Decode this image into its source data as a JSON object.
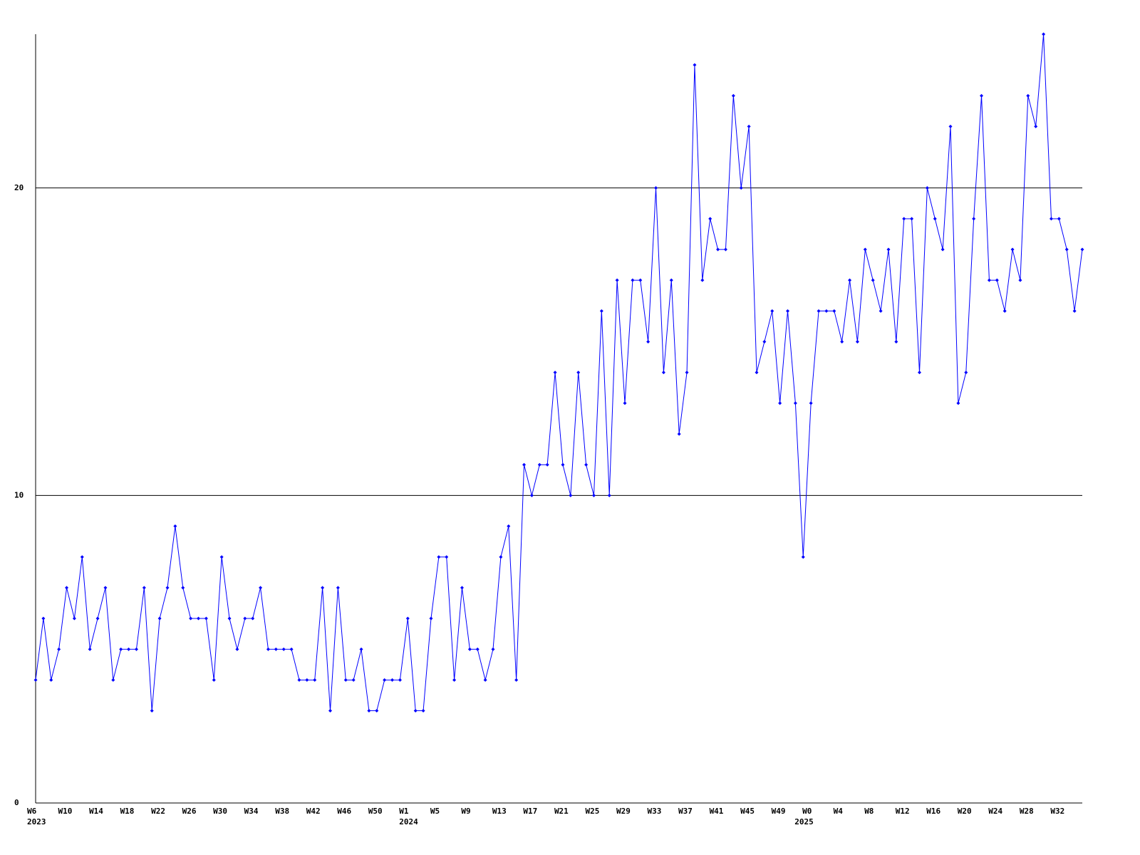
{
  "chart_data": {
    "type": "line",
    "color": "#0000ff",
    "grid": true,
    "ylim": [
      0,
      25
    ],
    "yticks": [
      0,
      10,
      20
    ],
    "categories": [
      "W6",
      null,
      null,
      null,
      "W10",
      null,
      null,
      null,
      "W14",
      null,
      null,
      null,
      "W18",
      null,
      null,
      null,
      "W22",
      null,
      null,
      null,
      "W26",
      null,
      null,
      null,
      "W30",
      null,
      null,
      null,
      "W34",
      null,
      null,
      null,
      "W38",
      null,
      null,
      null,
      "W42",
      null,
      null,
      null,
      "W46",
      null,
      null,
      null,
      "W50",
      null,
      null,
      null,
      "W1",
      null,
      null,
      null,
      "W5",
      null,
      null,
      null,
      "W9",
      null,
      null,
      null,
      "W13",
      null,
      null,
      null,
      "W17",
      null,
      null,
      null,
      "W21",
      null,
      null,
      null,
      "W25",
      null,
      null,
      null,
      "W29",
      null,
      null,
      null,
      "W33",
      null,
      null,
      null,
      "W37",
      null,
      null,
      null,
      "W41",
      null,
      null,
      null,
      "W45",
      null,
      null,
      null,
      "W49",
      null,
      null,
      null,
      "W0",
      null,
      null,
      null,
      "W4",
      null,
      null,
      null,
      "W8",
      null,
      null,
      null,
      "W12",
      null,
      null,
      null,
      "W16",
      null,
      null,
      null,
      "W20",
      null,
      null,
      null,
      "W24",
      null,
      null,
      null,
      "W28",
      null,
      null,
      null,
      "W32",
      null,
      null,
      null
    ],
    "category_years": [
      "2023",
      null,
      null,
      null,
      null,
      null,
      null,
      null,
      null,
      null,
      null,
      null,
      null,
      null,
      null,
      null,
      null,
      null,
      null,
      null,
      null,
      null,
      null,
      null,
      null,
      null,
      null,
      null,
      null,
      null,
      null,
      null,
      null,
      null,
      null,
      null,
      null,
      null,
      null,
      null,
      null,
      null,
      null,
      null,
      null,
      null,
      null,
      null,
      "2024",
      null,
      null,
      null,
      null,
      null,
      null,
      null,
      null,
      null,
      null,
      null,
      null,
      null,
      null,
      null,
      null,
      null,
      null,
      null,
      null,
      null,
      null,
      null,
      null,
      null,
      null,
      null,
      null,
      null,
      null,
      null,
      null,
      null,
      null,
      null,
      null,
      null,
      null,
      null,
      null,
      null,
      null,
      null,
      null,
      null,
      null,
      null,
      null,
      null,
      null,
      "2025",
      null,
      null,
      null,
      null,
      null,
      null,
      null,
      null,
      null,
      null,
      null,
      null,
      null,
      null,
      null,
      null,
      null,
      null,
      null,
      null,
      null,
      null,
      null,
      null,
      null,
      null,
      null,
      null,
      null,
      null,
      null,
      null,
      null,
      null,
      null
    ],
    "values": [
      4,
      6,
      4,
      5,
      7,
      6,
      8,
      5,
      6,
      7,
      4,
      5,
      5,
      5,
      7,
      3,
      6,
      7,
      9,
      7,
      6,
      6,
      6,
      4,
      8,
      6,
      5,
      6,
      6,
      7,
      5,
      5,
      5,
      5,
      4,
      4,
      4,
      7,
      3,
      7,
      4,
      4,
      5,
      3,
      3,
      4,
      4,
      4,
      6,
      3,
      3,
      6,
      8,
      8,
      4,
      7,
      5,
      5,
      4,
      5,
      8,
      9,
      4,
      11,
      10,
      11,
      11,
      14,
      11,
      10,
      14,
      11,
      10,
      16,
      10,
      17,
      13,
      17,
      17,
      15,
      20,
      14,
      17,
      12,
      14,
      24,
      17,
      19,
      18,
      18,
      23,
      20,
      22,
      14,
      15,
      16,
      13,
      16,
      13,
      8,
      13,
      16,
      16,
      16,
      15,
      17,
      15,
      18,
      17,
      16,
      18,
      15,
      19,
      19,
      14,
      20,
      19,
      18,
      22,
      13,
      14,
      19,
      23,
      17,
      17,
      16,
      18,
      17,
      23,
      22,
      25,
      19,
      19,
      18,
      16,
      18
    ]
  }
}
